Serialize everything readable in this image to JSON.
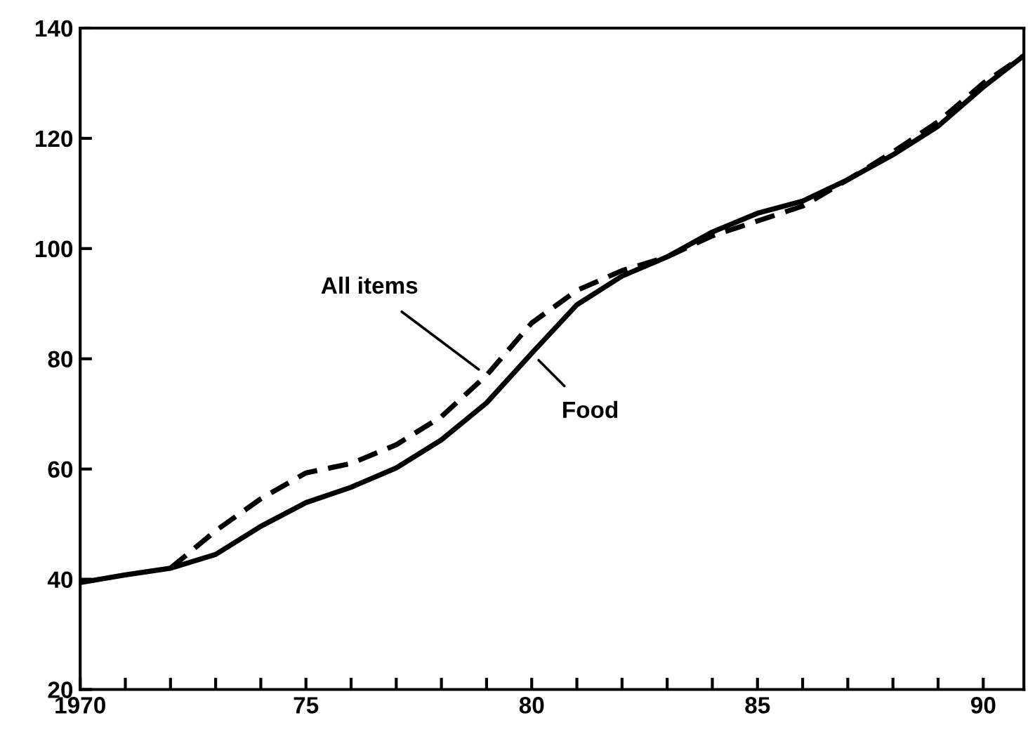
{
  "chart_data": {
    "type": "line",
    "x": [
      1970,
      1971,
      1972,
      1973,
      1974,
      1975,
      1976,
      1977,
      1978,
      1979,
      1980,
      1981,
      1982,
      1983,
      1984,
      1985,
      1986,
      1987,
      1988,
      1989,
      1990,
      1990.9
    ],
    "series": [
      {
        "color": "#000000",
        "line_style": "solid",
        "values": [
          39.4,
          40.8,
          42,
          44.5,
          49.6,
          53.9,
          56.7,
          60.2,
          65.3,
          72,
          81,
          89.8,
          95,
          98.5,
          103,
          106.4,
          108.6,
          112.5,
          117,
          122.2,
          129.3,
          135
        ]
      },
      {
        "color": "#000000",
        "line_style": "dashed",
        "values": [
          null,
          null,
          42,
          48.8,
          54.6,
          59.3,
          61,
          64.4,
          69.5,
          77,
          86.5,
          92.4,
          96,
          98.5,
          102.3,
          105,
          107.7,
          112.5,
          117.5,
          123,
          130,
          135
        ]
      }
    ],
    "xlim": [
      1970,
      1990.9
    ],
    "ylim": [
      20,
      140
    ],
    "xticks": [
      {
        "value": 1970,
        "label": "1970"
      },
      {
        "value": 1971,
        "label": null
      },
      {
        "value": 1972,
        "label": null
      },
      {
        "value": 1973,
        "label": null
      },
      {
        "value": 1974,
        "label": null
      },
      {
        "value": 1975,
        "label": "75"
      },
      {
        "value": 1976,
        "label": null
      },
      {
        "value": 1977,
        "label": null
      },
      {
        "value": 1978,
        "label": null
      },
      {
        "value": 1979,
        "label": null
      },
      {
        "value": 1980,
        "label": "80"
      },
      {
        "value": 1981,
        "label": null
      },
      {
        "value": 1982,
        "label": null
      },
      {
        "value": 1983,
        "label": null
      },
      {
        "value": 1984,
        "label": null
      },
      {
        "value": 1985,
        "label": "85"
      },
      {
        "value": 1986,
        "label": null
      },
      {
        "value": 1987,
        "label": null
      },
      {
        "value": 1988,
        "label": null
      },
      {
        "value": 1989,
        "label": null
      },
      {
        "value": 1990,
        "label": "90"
      }
    ],
    "yticks": [
      20,
      40,
      60,
      80,
      100,
      120,
      140
    ],
    "annotations": [
      {
        "text": "All items",
        "x": 1979,
        "y": 77
      },
      {
        "text": "Food",
        "x": 1980,
        "y": 81
      }
    ],
    "grid": false,
    "legend": false
  }
}
